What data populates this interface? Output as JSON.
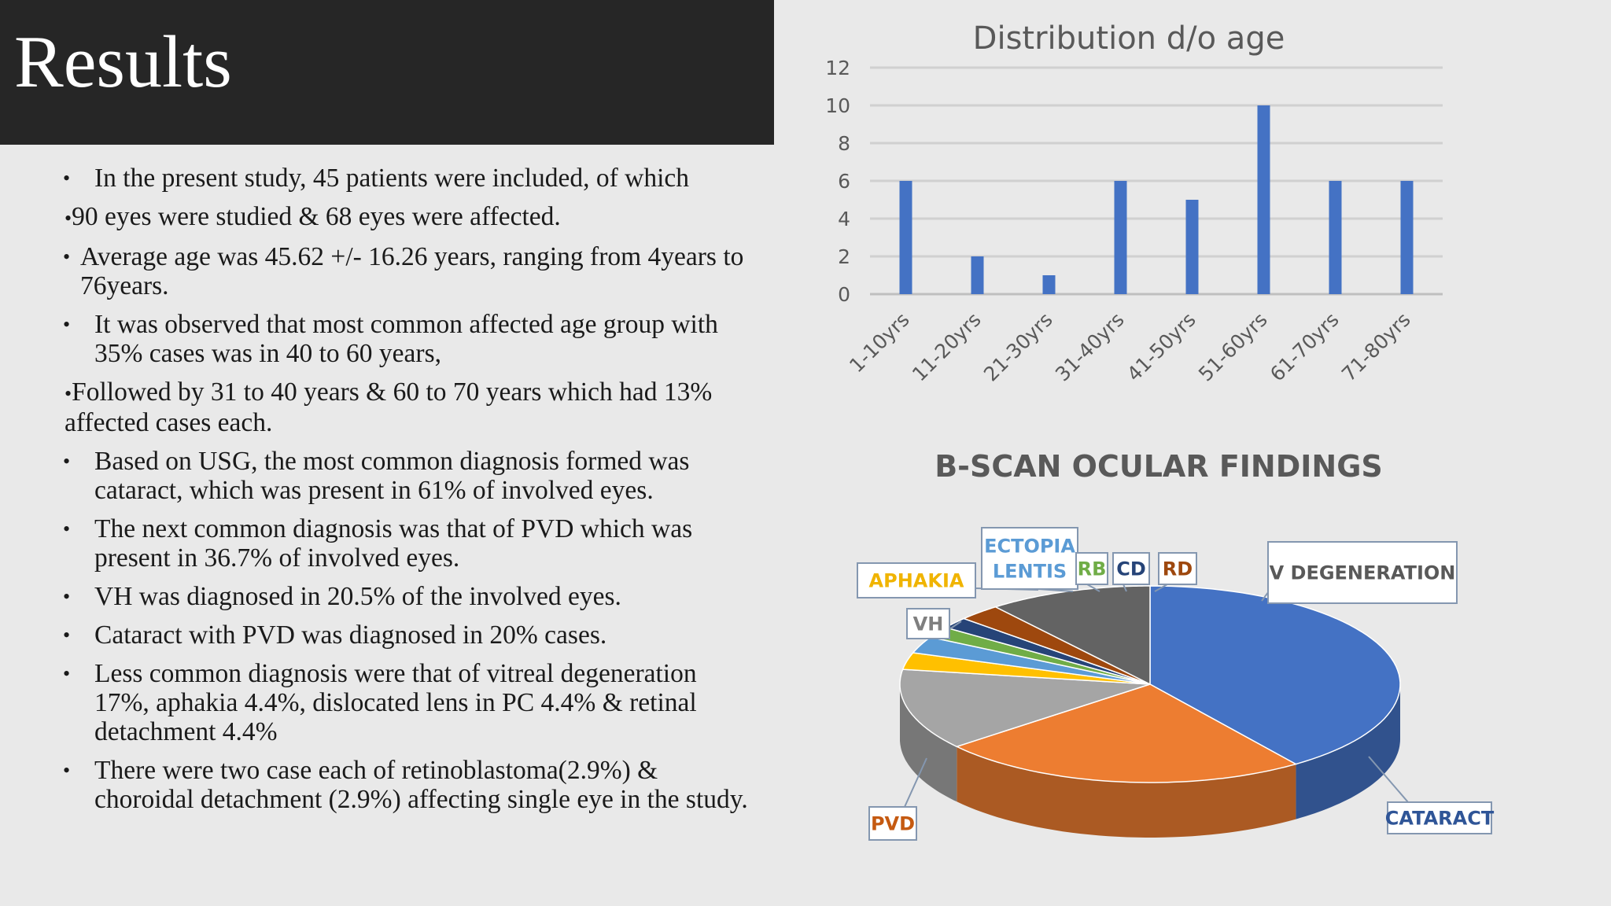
{
  "slide": {
    "title": "Results",
    "bullets": [
      {
        "marker": "•",
        "text": "In the present study, 45 patients were included, of which"
      },
      {
        "marker": "•",
        "text": "90 eyes were studied & 68 eyes were affected."
      },
      {
        "marker": "•",
        "text": " Average age was 45.62 +/- 16.26 years, ranging from 4years to 76years."
      },
      {
        "marker": "•",
        "text": "It was observed that most common affected age group with 35% cases was in 40 to 60 years,"
      },
      {
        "marker": "•",
        "text": "Followed by 31 to 40 years & 60 to 70 years which had 13% affected cases each."
      },
      {
        "marker": "•",
        "text": "Based on USG, the most common diagnosis formed was cataract, which was present in 61% of involved eyes."
      },
      {
        "marker": "•",
        "text": "The next common diagnosis was that of PVD which was present in 36.7% of involved eyes."
      },
      {
        "marker": "•",
        "text": "VH was diagnosed in 20.5% of the involved eyes."
      },
      {
        "marker": "•",
        "text": "Cataract with PVD was diagnosed in 20% cases."
      },
      {
        "marker": "•",
        "text": "Less common diagnosis were that of  vitreal degeneration 17%,  aphakia 4.4%, dislocated lens in PC 4.4% & retinal detachment 4.4%"
      },
      {
        "marker": "•",
        "text": "There were two case each of retinoblastoma(2.9%) & choroidal detachment (2.9%) affecting single eye in the study."
      }
    ]
  },
  "chart_data": [
    {
      "type": "bar",
      "title": "Distribution d/o age",
      "categories": [
        "1-10yrs",
        "11-20yrs",
        "21-30yrs",
        "31-40yrs",
        "41-50yrs",
        "51-60yrs",
        "61-70yrs",
        "71-80yrs"
      ],
      "values": [
        6,
        2,
        1,
        6,
        5,
        10,
        6,
        6
      ],
      "yticks": [
        "0",
        "2",
        "4",
        "6",
        "8",
        "10",
        "12"
      ],
      "ylim": [
        0,
        12
      ],
      "grid": true,
      "bar_color": "#4472c4"
    },
    {
      "type": "pie",
      "title": "B-SCAN OCULAR FINDINGS",
      "style": "3d",
      "slices": [
        {
          "label": "CATARACT",
          "value": 43.5,
          "color": "#4472c4",
          "label_color": "#2f5597"
        },
        {
          "label": "PVD",
          "value": 26,
          "color": "#ed7d31",
          "label_color": "#c55a11"
        },
        {
          "label": "VH",
          "value": 14.5,
          "color": "#a5a5a5",
          "label_color": "#7f7f7f"
        },
        {
          "label": "APHAKIA",
          "value": 3,
          "color": "#ffc000",
          "label_color": "#f0b400"
        },
        {
          "label": "ECTOPIA LENTIS",
          "value": 3,
          "color": "#5b9bd5",
          "label_color": "#5b9bd5"
        },
        {
          "label": "RB",
          "value": 2,
          "color": "#70ad47",
          "label_color": "#70ad47"
        },
        {
          "label": "CD",
          "value": 2,
          "color": "#264478",
          "label_color": "#264478"
        },
        {
          "label": "RD",
          "value": 3,
          "color": "#9e480e",
          "label_color": "#9e480e"
        },
        {
          "label": "V DEGENERATION",
          "value": 11.5,
          "color": "#636363",
          "label_color": "#595959"
        }
      ]
    }
  ]
}
